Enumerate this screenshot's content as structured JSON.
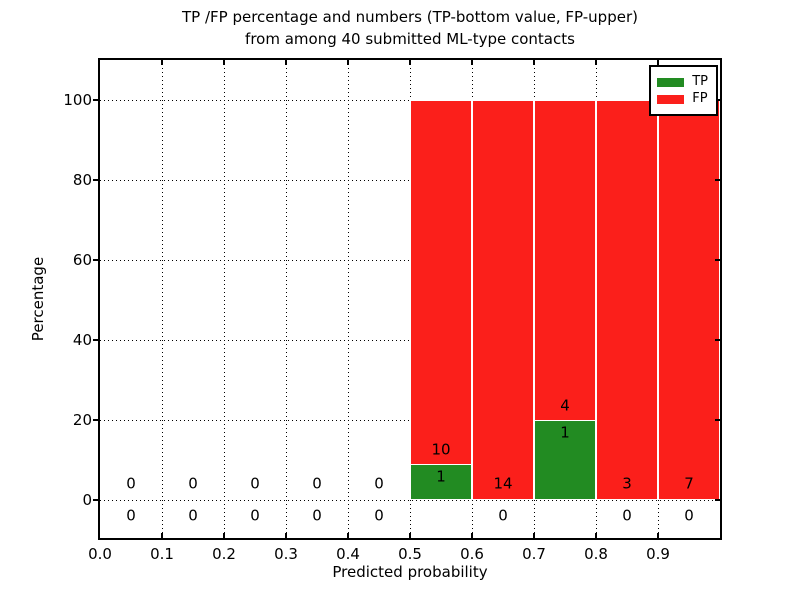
{
  "title": {
    "line1": "TP /FP percentage and numbers (TP-bottom value, FP-upper)",
    "line2": "from among 40 submitted ML-type contacts"
  },
  "axes": {
    "ylabel": "Percentage",
    "xlabel": "Predicted probability",
    "ytick_labels": [
      "0",
      "20",
      "40",
      "60",
      "80",
      "100"
    ],
    "ytick_values": [
      0,
      20,
      40,
      60,
      80,
      100
    ],
    "xtick_labels": [
      "0.0",
      "0.1",
      "0.2",
      "0.3",
      "0.4",
      "0.5",
      "0.6",
      "0.7",
      "0.8",
      "0.9"
    ],
    "xtick_values": [
      0.0,
      0.1,
      0.2,
      0.3,
      0.4,
      0.5,
      0.6,
      0.7,
      0.8,
      0.9
    ]
  },
  "legend": {
    "entries": [
      {
        "label": "TP",
        "color": "#228b22"
      },
      {
        "label": "FP",
        "color": "#fb1f1b"
      }
    ]
  },
  "colors": {
    "tp": "#228b22",
    "fp": "#fb1f1b",
    "grid": "#000000",
    "text": "#000000"
  },
  "chart_data": {
    "type": "bar",
    "stacked": true,
    "title": "TP /FP percentage and numbers (TP-bottom value, FP-upper) from among 40 submitted ML-type contacts",
    "xlabel": "Predicted probability",
    "ylabel": "Percentage",
    "xlim": [
      0.0,
      1.0
    ],
    "ylim": [
      -10,
      110
    ],
    "grid": "dotted",
    "legend_position": "upper right",
    "bin_width": 0.1,
    "bin_starts": [
      0.0,
      0.1,
      0.2,
      0.3,
      0.4,
      0.5,
      0.6,
      0.7,
      0.8,
      0.9
    ],
    "total_contacts": 40,
    "series": [
      {
        "name": "TP",
        "color": "#228b22",
        "counts": [
          0,
          0,
          0,
          0,
          0,
          1,
          0,
          1,
          0,
          0
        ],
        "percent": [
          0,
          0,
          0,
          0,
          0,
          9.09,
          0,
          20,
          0,
          0
        ]
      },
      {
        "name": "FP",
        "color": "#fb1f1b",
        "counts": [
          0,
          0,
          0,
          0,
          0,
          10,
          14,
          4,
          3,
          7
        ],
        "percent": [
          0,
          0,
          0,
          0,
          0,
          90.91,
          100,
          80,
          100,
          100
        ]
      }
    ]
  }
}
